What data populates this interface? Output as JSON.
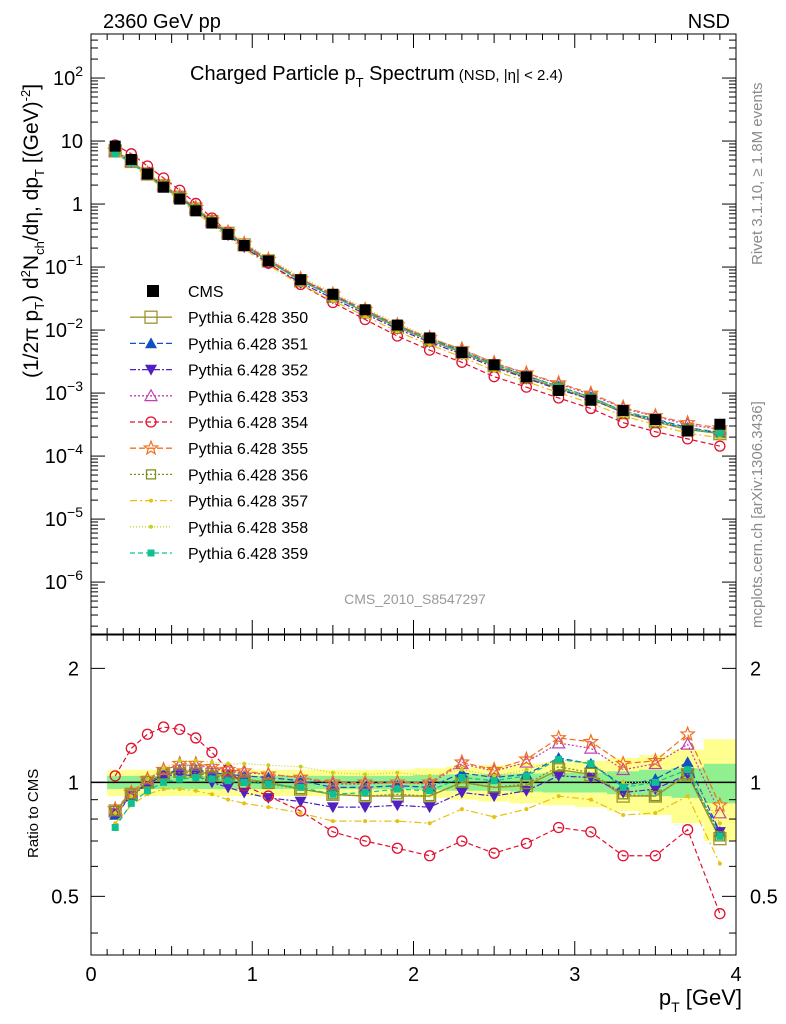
{
  "header": {
    "left": "2360 GeV pp",
    "right": "NSD"
  },
  "side_labels": {
    "rivet": "Rivet 3.1.10, ≥ 1.8M events",
    "mcplots": "mcplots.cern.ch [arXiv:1306.3436]"
  },
  "watermark": "CMS_2010_S8547297",
  "title": {
    "main": "Charged Particle p",
    "sub": "T",
    "rest": " Spectrum",
    "note": "(NSD, |η| < 2.4)"
  },
  "ylabel_main": "(1/2π p_T) d²N_ch/dη, dp_T [(GeV)⁻²]",
  "ylabel_ratio": "Ratio to CMS",
  "xlabel": "p_T [GeV]",
  "colors": {
    "cms": "#000000",
    "p350": "#a09430",
    "p351": "#1050c0",
    "p352": "#5020c0",
    "p353": "#c040b0",
    "p354": "#e01030",
    "p355": "#f07020",
    "p356": "#809020",
    "p357": "#e8c010",
    "p358": "#c8d020",
    "p359": "#10c090",
    "band_green": "#90f090",
    "band_yellow": "#ffff90"
  },
  "chart_data": [
    {
      "type": "scatter",
      "panel": "main",
      "title": "Charged Particle pT Spectrum (NSD, |η| < 2.4)",
      "xlabel": "pT [GeV]",
      "ylabel": "(1/2π pT) d²Nch/dη, dpT [(GeV)^-2]",
      "xlim": [
        0,
        4
      ],
      "ylim": [
        1.5e-07,
        500
      ],
      "yscale": "log",
      "x": [
        0.15,
        0.25,
        0.35,
        0.45,
        0.55,
        0.65,
        0.75,
        0.85,
        0.95,
        1.1,
        1.3,
        1.5,
        1.7,
        1.9,
        2.1,
        2.3,
        2.5,
        2.7,
        2.9,
        3.1,
        3.3,
        3.5,
        3.7,
        3.9
      ],
      "cms": [
        8.3,
        5.1,
        3.0,
        1.85,
        1.2,
        0.78,
        0.5,
        0.33,
        0.22,
        0.125,
        0.063,
        0.037,
        0.021,
        0.012,
        0.0075,
        0.0044,
        0.0028,
        0.0018,
        0.0011,
        0.00077,
        0.00053,
        0.00038,
        0.00025,
        0.00032
      ],
      "legend": [
        "CMS",
        "Pythia 6.428 350",
        "Pythia 6.428 351",
        "Pythia 6.428 352",
        "Pythia 6.428 353",
        "Pythia 6.428 354",
        "Pythia 6.428 355",
        "Pythia 6.428 356",
        "Pythia 6.428 357",
        "Pythia 6.428 358",
        "Pythia 6.428 359"
      ],
      "legend_position": "middle-left"
    },
    {
      "type": "line",
      "panel": "ratio",
      "ylabel": "Ratio to CMS",
      "xlim": [
        0,
        4
      ],
      "ylim": [
        0.35,
        2.45
      ],
      "yscale": "log",
      "yticks": [
        0.5,
        1,
        2
      ],
      "series": [
        {
          "name": "Pythia 6.428 350",
          "marker": "square-open",
          "dash": "",
          "values": [
            0.84,
            0.93,
            1.0,
            1.05,
            1.07,
            1.07,
            1.05,
            1.04,
            1.02,
            1.0,
            0.96,
            0.93,
            0.92,
            0.92,
            0.92,
            1.0,
            0.97,
            0.98,
            1.08,
            1.05,
            0.92,
            0.92,
            1.05,
            0.71
          ]
        },
        {
          "name": "Pythia 6.428 351",
          "marker": "triangle-up-filled",
          "dash": "6,3",
          "values": [
            0.82,
            0.92,
            1.0,
            1.05,
            1.08,
            1.08,
            1.06,
            1.05,
            1.04,
            1.03,
            1.01,
            0.97,
            0.97,
            0.98,
            0.97,
            1.06,
            1.03,
            1.05,
            1.16,
            1.12,
            0.98,
            1.02,
            1.13,
            0.74
          ]
        },
        {
          "name": "Pythia 6.428 352",
          "marker": "triangle-down-filled",
          "dash": "6,2,2,2",
          "values": [
            0.83,
            0.92,
            0.99,
            1.04,
            1.05,
            1.04,
            1.0,
            0.97,
            0.94,
            0.91,
            0.89,
            0.86,
            0.86,
            0.87,
            0.86,
            0.94,
            0.92,
            0.95,
            1.04,
            1.03,
            0.94,
            0.96,
            1.05,
            0.74
          ]
        },
        {
          "name": "Pythia 6.428 353",
          "marker": "triangle-up-open",
          "dash": "2,2",
          "values": [
            0.84,
            0.94,
            1.02,
            1.08,
            1.11,
            1.11,
            1.09,
            1.07,
            1.06,
            1.05,
            1.03,
            0.99,
            0.99,
            1.0,
            0.99,
            1.12,
            1.07,
            1.13,
            1.27,
            1.23,
            1.08,
            1.12,
            1.26,
            0.83
          ]
        },
        {
          "name": "Pythia 6.428 354",
          "marker": "circle-open",
          "dash": "5,3",
          "values": [
            1.04,
            1.23,
            1.34,
            1.4,
            1.38,
            1.31,
            1.2,
            1.08,
            0.98,
            0.92,
            0.84,
            0.74,
            0.7,
            0.67,
            0.64,
            0.7,
            0.65,
            0.69,
            0.76,
            0.74,
            0.64,
            0.64,
            0.75,
            0.45
          ]
        },
        {
          "name": "Pythia 6.428 355",
          "marker": "star-open",
          "dash": "6,3",
          "values": [
            0.85,
            0.94,
            1.02,
            1.08,
            1.12,
            1.12,
            1.1,
            1.08,
            1.07,
            1.05,
            1.03,
            1.0,
            1.0,
            1.0,
            1.0,
            1.13,
            1.08,
            1.15,
            1.31,
            1.28,
            1.12,
            1.14,
            1.34,
            0.87
          ]
        },
        {
          "name": "Pythia 6.428 356",
          "marker": "square-open-small",
          "dash": "2,2",
          "values": [
            0.84,
            0.93,
            1.0,
            1.05,
            1.06,
            1.06,
            1.04,
            1.03,
            1.01,
            0.99,
            0.96,
            0.93,
            0.92,
            0.93,
            0.92,
            1.0,
            0.97,
            0.99,
            1.1,
            1.06,
            0.93,
            0.92,
            1.05,
            0.72
          ]
        },
        {
          "name": "Pythia 6.428 357",
          "marker": "dot",
          "dash": "7,3,2,3",
          "values": [
            0.78,
            0.87,
            0.93,
            0.96,
            0.96,
            0.95,
            0.93,
            0.9,
            0.88,
            0.86,
            0.83,
            0.79,
            0.79,
            0.79,
            0.78,
            0.85,
            0.81,
            0.85,
            0.92,
            0.9,
            0.82,
            0.83,
            0.92,
            0.61
          ]
        },
        {
          "name": "Pythia 6.428 358",
          "marker": "dot",
          "dash": "1,2",
          "values": [
            0.83,
            0.92,
            1.02,
            1.09,
            1.14,
            1.14,
            1.13,
            1.12,
            1.12,
            1.11,
            1.1,
            1.06,
            1.05,
            1.06,
            1.04,
            1.08,
            1.04,
            1.08,
            1.15,
            1.12,
            1.0,
            1.0,
            1.08,
            0.78
          ]
        },
        {
          "name": "Pythia 6.428 359",
          "marker": "square-filled-small",
          "dash": "5,3",
          "values": [
            0.76,
            0.88,
            0.95,
            1.0,
            1.02,
            1.03,
            1.02,
            1.01,
            1.0,
            0.99,
            0.97,
            0.93,
            0.94,
            0.96,
            0.95,
            1.03,
            1.01,
            1.04,
            1.15,
            1.12,
            0.97,
            1.0,
            1.08,
            0.72
          ]
        }
      ],
      "band_green": {
        "half_width": [
          0.04,
          0.04,
          0.04,
          0.04,
          0.04,
          0.04,
          0.04,
          0.04,
          0.04,
          0.04,
          0.04,
          0.04,
          0.04,
          0.04,
          0.045,
          0.05,
          0.05,
          0.055,
          0.06,
          0.06,
          0.07,
          0.08,
          0.09,
          0.12
        ]
      },
      "band_yellow": {
        "half_width": [
          0.08,
          0.08,
          0.08,
          0.08,
          0.08,
          0.08,
          0.08,
          0.08,
          0.08,
          0.08,
          0.08,
          0.08,
          0.08,
          0.08,
          0.09,
          0.1,
          0.11,
          0.12,
          0.13,
          0.14,
          0.16,
          0.18,
          0.22,
          0.3
        ]
      }
    }
  ]
}
